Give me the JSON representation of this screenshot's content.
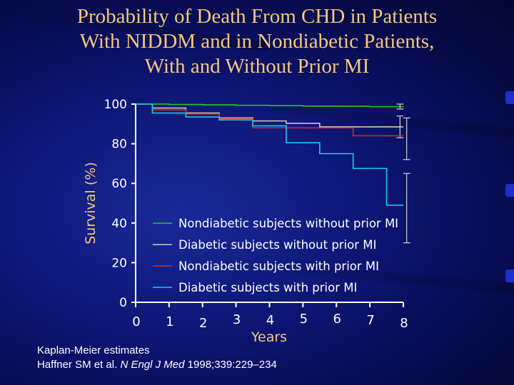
{
  "title": {
    "line1": "Probability of Death From CHD in Patients",
    "line2": "With NIDDM and in Nondiabetic Patients,",
    "line3": "With and Without Prior MI"
  },
  "colors": {
    "title": "#f5c878",
    "axis": "#ffffff",
    "axis_label": "#f5c878",
    "tick_label": "#ffffff"
  },
  "chart_data": {
    "type": "line",
    "step": true,
    "xlabel": "Years",
    "ylabel": "Survival (%)",
    "xlim": [
      0,
      8
    ],
    "ylim": [
      0,
      100
    ],
    "x_ticks": [
      0,
      1,
      2,
      3,
      4,
      5,
      6,
      7,
      8
    ],
    "y_ticks": [
      0,
      20,
      40,
      60,
      80,
      100
    ],
    "legend_position": "bottom-center",
    "series": [
      {
        "name": "Nondiabetic subjects without prior MI",
        "color": "#22cc22",
        "x": [
          0,
          1,
          2,
          3,
          4,
          5,
          6,
          7,
          8
        ],
        "y": [
          100,
          99.8,
          99.6,
          99.4,
          99.2,
          99.0,
          98.9,
          98.7,
          98.5
        ],
        "error_bar_at_end": {
          "x": 7.9,
          "low": 97.5,
          "high": 100
        }
      },
      {
        "name": "Diabetic subjects without prior MI",
        "color": "#d8c8a8",
        "x": [
          0,
          0.5,
          1.5,
          2.5,
          3.5,
          4.5,
          5.5,
          8
        ],
        "y": [
          100,
          98,
          95.5,
          93,
          91.5,
          90.3,
          88.5,
          88.5
        ],
        "error_bar_at_end": {
          "x": 7.9,
          "low": 83,
          "high": 94
        }
      },
      {
        "name": "Nondiabetic subjects with prior MI",
        "color": "#cc2a1a",
        "x": [
          0,
          0.5,
          1.5,
          2.5,
          3.5,
          4.5,
          6.5,
          8
        ],
        "y": [
          100,
          97,
          95,
          92.5,
          88,
          88,
          84,
          84
        ],
        "error_bar_at_end": {
          "x": 8.1,
          "low": 72,
          "high": 93
        }
      },
      {
        "name": "Diabetic subjects with prior MI",
        "color": "#1fc8f0",
        "x": [
          0,
          0.5,
          1.5,
          2.5,
          3.5,
          4.5,
          5.5,
          6.5,
          7.5,
          8
        ],
        "y": [
          100,
          95.5,
          93.5,
          92,
          89,
          80.5,
          75,
          67.5,
          49,
          49
        ],
        "error_bar_at_end": {
          "x": 8.1,
          "low": 30,
          "high": 65
        }
      }
    ]
  },
  "footnote": {
    "line1": "Kaplan-Meier estimates",
    "authors": "Haffner SM et al.",
    "journal": "N Engl J Med",
    "citation": "1998;339:229–234"
  }
}
